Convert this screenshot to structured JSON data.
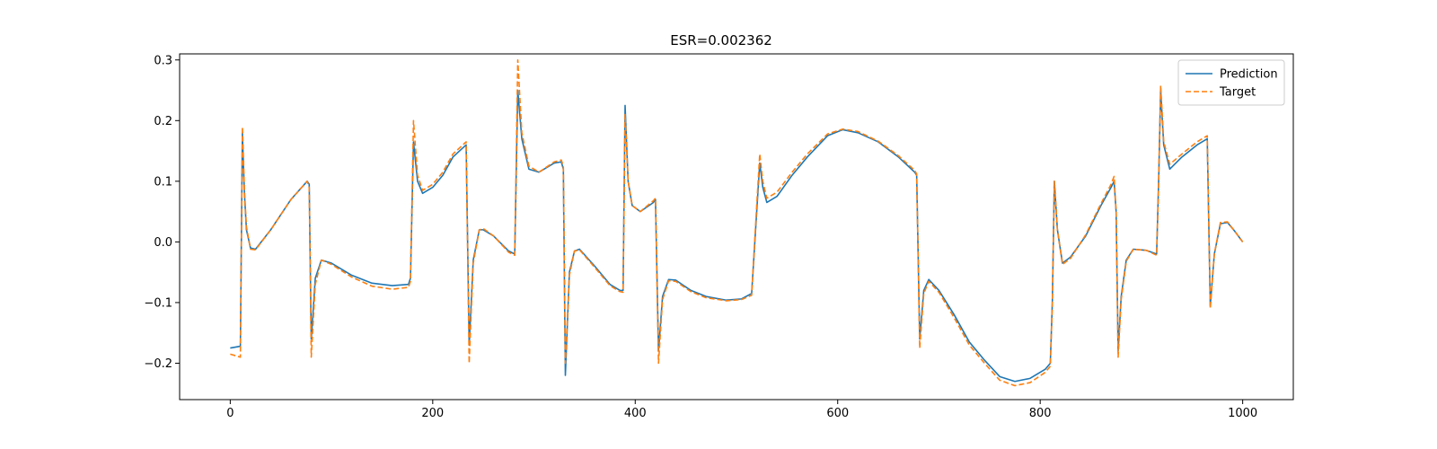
{
  "chart_data": {
    "type": "line",
    "title": "ESR=0.002362",
    "xlabel": "",
    "ylabel": "",
    "xlim": [
      -50,
      1050
    ],
    "ylim": [
      -0.26,
      0.31
    ],
    "xticks": [
      0,
      200,
      400,
      600,
      800,
      1000
    ],
    "xtick_labels": [
      "0",
      "200",
      "400",
      "600",
      "800",
      "1000"
    ],
    "yticks": [
      -0.2,
      -0.1,
      0.0,
      0.1,
      0.2,
      0.3
    ],
    "ytick_labels": [
      "−0.2",
      "−0.1",
      "0.0",
      "0.1",
      "0.2",
      "0.3"
    ],
    "grid": false,
    "legend_position": "top-right",
    "series": [
      {
        "name": "Prediction",
        "color": "#1f77b4",
        "style": "solid",
        "points": [
          [
            0,
            -0.175
          ],
          [
            10,
            -0.172
          ],
          [
            12,
            0.18
          ],
          [
            14,
            0.08
          ],
          [
            16,
            0.02
          ],
          [
            20,
            -0.01
          ],
          [
            25,
            -0.012
          ],
          [
            40,
            0.02
          ],
          [
            60,
            0.07
          ],
          [
            76,
            0.1
          ],
          [
            78,
            0.095
          ],
          [
            80,
            -0.16
          ],
          [
            84,
            -0.06
          ],
          [
            90,
            -0.03
          ],
          [
            100,
            -0.035
          ],
          [
            120,
            -0.055
          ],
          [
            140,
            -0.068
          ],
          [
            160,
            -0.072
          ],
          [
            176,
            -0.07
          ],
          [
            178,
            -0.06
          ],
          [
            181,
            0.165
          ],
          [
            185,
            0.1
          ],
          [
            190,
            0.08
          ],
          [
            200,
            0.09
          ],
          [
            210,
            0.11
          ],
          [
            220,
            0.14
          ],
          [
            233,
            0.16
          ],
          [
            236,
            -0.17
          ],
          [
            240,
            -0.03
          ],
          [
            246,
            0.02
          ],
          [
            250,
            0.02
          ],
          [
            260,
            0.01
          ],
          [
            275,
            -0.015
          ],
          [
            281,
            -0.02
          ],
          [
            284,
            0.25
          ],
          [
            288,
            0.17
          ],
          [
            295,
            0.12
          ],
          [
            305,
            0.115
          ],
          [
            320,
            0.13
          ],
          [
            327,
            0.132
          ],
          [
            329,
            0.12
          ],
          [
            331,
            -0.22
          ],
          [
            335,
            -0.05
          ],
          [
            340,
            -0.015
          ],
          [
            345,
            -0.012
          ],
          [
            360,
            -0.04
          ],
          [
            375,
            -0.07
          ],
          [
            385,
            -0.08
          ],
          [
            388,
            -0.08
          ],
          [
            390,
            0.225
          ],
          [
            393,
            0.1
          ],
          [
            397,
            0.06
          ],
          [
            405,
            0.05
          ],
          [
            418,
            0.065
          ],
          [
            420,
            0.07
          ],
          [
            423,
            -0.18
          ],
          [
            427,
            -0.09
          ],
          [
            433,
            -0.062
          ],
          [
            440,
            -0.063
          ],
          [
            455,
            -0.08
          ],
          [
            470,
            -0.09
          ],
          [
            490,
            -0.096
          ],
          [
            505,
            -0.094
          ],
          [
            515,
            -0.085
          ],
          [
            520,
            0.05
          ],
          [
            523,
            0.13
          ],
          [
            526,
            0.09
          ],
          [
            530,
            0.065
          ],
          [
            540,
            0.075
          ],
          [
            555,
            0.11
          ],
          [
            570,
            0.14
          ],
          [
            590,
            0.175
          ],
          [
            605,
            0.185
          ],
          [
            620,
            0.18
          ],
          [
            640,
            0.165
          ],
          [
            660,
            0.14
          ],
          [
            676,
            0.115
          ],
          [
            678,
            0.11
          ],
          [
            681,
            -0.16
          ],
          [
            685,
            -0.08
          ],
          [
            690,
            -0.062
          ],
          [
            700,
            -0.08
          ],
          [
            715,
            -0.12
          ],
          [
            730,
            -0.165
          ],
          [
            745,
            -0.195
          ],
          [
            760,
            -0.222
          ],
          [
            775,
            -0.23
          ],
          [
            790,
            -0.225
          ],
          [
            805,
            -0.21
          ],
          [
            810,
            -0.2
          ],
          [
            812,
            -0.1
          ],
          [
            814,
            0.1
          ],
          [
            817,
            0.02
          ],
          [
            822,
            -0.035
          ],
          [
            830,
            -0.025
          ],
          [
            845,
            0.01
          ],
          [
            860,
            0.06
          ],
          [
            870,
            0.09
          ],
          [
            873,
            0.1
          ],
          [
            875,
            0.05
          ],
          [
            877,
            -0.18
          ],
          [
            880,
            -0.09
          ],
          [
            885,
            -0.03
          ],
          [
            892,
            -0.012
          ],
          [
            905,
            -0.014
          ],
          [
            915,
            -0.02
          ],
          [
            917,
            0.1
          ],
          [
            919,
            0.25
          ],
          [
            922,
            0.16
          ],
          [
            928,
            0.12
          ],
          [
            940,
            0.14
          ],
          [
            955,
            0.16
          ],
          [
            965,
            0.17
          ],
          [
            968,
            -0.105
          ],
          [
            972,
            -0.02
          ],
          [
            978,
            0.03
          ],
          [
            985,
            0.032
          ],
          [
            992,
            0.018
          ],
          [
            1000,
            0.0
          ]
        ]
      },
      {
        "name": "Target",
        "color": "#ff7f0e",
        "style": "dashed",
        "points": [
          [
            0,
            -0.185
          ],
          [
            10,
            -0.19
          ],
          [
            12,
            0.19
          ],
          [
            14,
            0.085
          ],
          [
            16,
            0.025
          ],
          [
            20,
            -0.012
          ],
          [
            25,
            -0.013
          ],
          [
            40,
            0.02
          ],
          [
            60,
            0.07
          ],
          [
            76,
            0.1
          ],
          [
            78,
            0.09
          ],
          [
            80,
            -0.19
          ],
          [
            84,
            -0.07
          ],
          [
            90,
            -0.03
          ],
          [
            100,
            -0.037
          ],
          [
            120,
            -0.058
          ],
          [
            140,
            -0.073
          ],
          [
            160,
            -0.078
          ],
          [
            176,
            -0.075
          ],
          [
            178,
            -0.065
          ],
          [
            181,
            0.2
          ],
          [
            185,
            0.11
          ],
          [
            190,
            0.085
          ],
          [
            200,
            0.095
          ],
          [
            210,
            0.115
          ],
          [
            220,
            0.145
          ],
          [
            233,
            0.165
          ],
          [
            236,
            -0.2
          ],
          [
            240,
            -0.035
          ],
          [
            246,
            0.02
          ],
          [
            250,
            0.022
          ],
          [
            260,
            0.01
          ],
          [
            275,
            -0.017
          ],
          [
            281,
            -0.022
          ],
          [
            284,
            0.3
          ],
          [
            288,
            0.18
          ],
          [
            295,
            0.125
          ],
          [
            305,
            0.115
          ],
          [
            320,
            0.132
          ],
          [
            327,
            0.135
          ],
          [
            329,
            0.125
          ],
          [
            331,
            -0.2
          ],
          [
            335,
            -0.055
          ],
          [
            340,
            -0.015
          ],
          [
            345,
            -0.013
          ],
          [
            360,
            -0.042
          ],
          [
            375,
            -0.072
          ],
          [
            385,
            -0.082
          ],
          [
            388,
            -0.083
          ],
          [
            390,
            0.21
          ],
          [
            393,
            0.1
          ],
          [
            397,
            0.06
          ],
          [
            405,
            0.05
          ],
          [
            418,
            0.068
          ],
          [
            420,
            0.072
          ],
          [
            423,
            -0.2
          ],
          [
            427,
            -0.095
          ],
          [
            433,
            -0.064
          ],
          [
            440,
            -0.065
          ],
          [
            455,
            -0.082
          ],
          [
            470,
            -0.092
          ],
          [
            490,
            -0.097
          ],
          [
            505,
            -0.095
          ],
          [
            515,
            -0.088
          ],
          [
            520,
            0.06
          ],
          [
            523,
            0.145
          ],
          [
            526,
            0.1
          ],
          [
            530,
            0.072
          ],
          [
            540,
            0.082
          ],
          [
            555,
            0.115
          ],
          [
            570,
            0.145
          ],
          [
            590,
            0.178
          ],
          [
            605,
            0.186
          ],
          [
            620,
            0.182
          ],
          [
            640,
            0.166
          ],
          [
            660,
            0.142
          ],
          [
            676,
            0.118
          ],
          [
            678,
            0.112
          ],
          [
            681,
            -0.175
          ],
          [
            685,
            -0.085
          ],
          [
            690,
            -0.065
          ],
          [
            700,
            -0.083
          ],
          [
            715,
            -0.125
          ],
          [
            730,
            -0.17
          ],
          [
            745,
            -0.2
          ],
          [
            760,
            -0.228
          ],
          [
            775,
            -0.237
          ],
          [
            790,
            -0.232
          ],
          [
            805,
            -0.215
          ],
          [
            810,
            -0.205
          ],
          [
            812,
            -0.1
          ],
          [
            814,
            0.1
          ],
          [
            817,
            0.02
          ],
          [
            822,
            -0.037
          ],
          [
            830,
            -0.027
          ],
          [
            845,
            0.012
          ],
          [
            860,
            0.063
          ],
          [
            870,
            0.095
          ],
          [
            873,
            0.108
          ],
          [
            875,
            0.05
          ],
          [
            877,
            -0.19
          ],
          [
            880,
            -0.095
          ],
          [
            885,
            -0.032
          ],
          [
            892,
            -0.012
          ],
          [
            905,
            -0.014
          ],
          [
            915,
            -0.022
          ],
          [
            917,
            0.1
          ],
          [
            919,
            0.258
          ],
          [
            922,
            0.165
          ],
          [
            928,
            0.128
          ],
          [
            940,
            0.145
          ],
          [
            955,
            0.165
          ],
          [
            965,
            0.175
          ],
          [
            968,
            -0.11
          ],
          [
            972,
            -0.02
          ],
          [
            978,
            0.032
          ],
          [
            985,
            0.033
          ],
          [
            992,
            0.018
          ],
          [
            1000,
            0.0
          ]
        ]
      }
    ]
  }
}
